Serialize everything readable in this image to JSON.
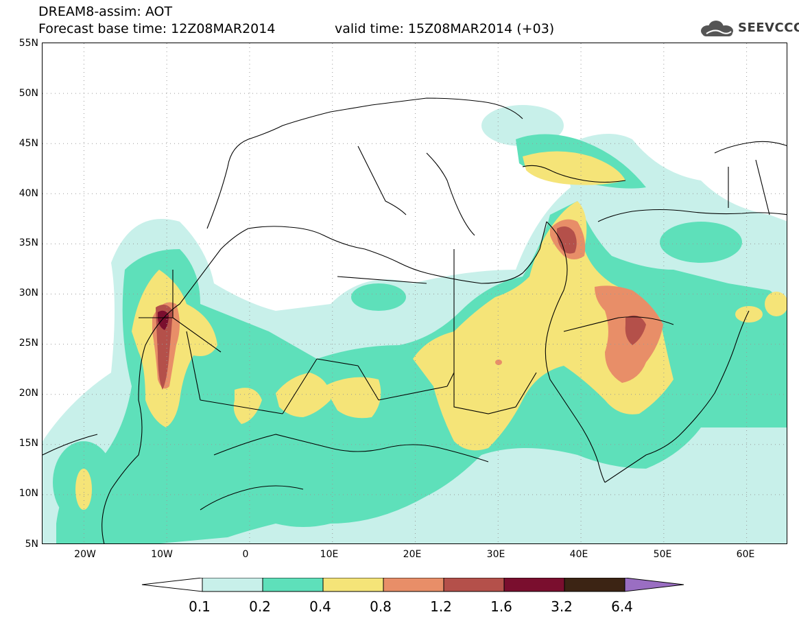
{
  "header": {
    "title": "DREAM8-assim: AOT",
    "forecast_base": "Forecast base time: 12Z08MAR2014",
    "valid_time": "valid time: 15Z08MAR2014 (+03)",
    "logo_text": "SEEVCCC"
  },
  "map": {
    "variable": "AOT",
    "lon_range": [
      -25,
      65
    ],
    "lat_range": [
      5,
      55
    ],
    "lat_labels": [
      "55N",
      "50N",
      "45N",
      "40N",
      "35N",
      "30N",
      "25N",
      "20N",
      "15N",
      "10N",
      "5N"
    ],
    "lon_labels": [
      "20W",
      "10W",
      "0",
      "10E",
      "20E",
      "30E",
      "40E",
      "50E",
      "60E"
    ],
    "dotted_grid": true,
    "features": [
      "coastlines",
      "country-borders",
      "AOT-filled-contours"
    ]
  },
  "colorbar": {
    "labels": [
      "0.1",
      "0.2",
      "0.4",
      "0.8",
      "1.2",
      "1.6",
      "3.2",
      "6.4"
    ],
    "colors": [
      "#ffffff",
      "#c8f0ea",
      "#5ee0ba",
      "#f5e478",
      "#e88e68",
      "#b4504a",
      "#7a0e2e",
      "#3c2414",
      "#9a6ec2"
    ],
    "extend": "both"
  }
}
